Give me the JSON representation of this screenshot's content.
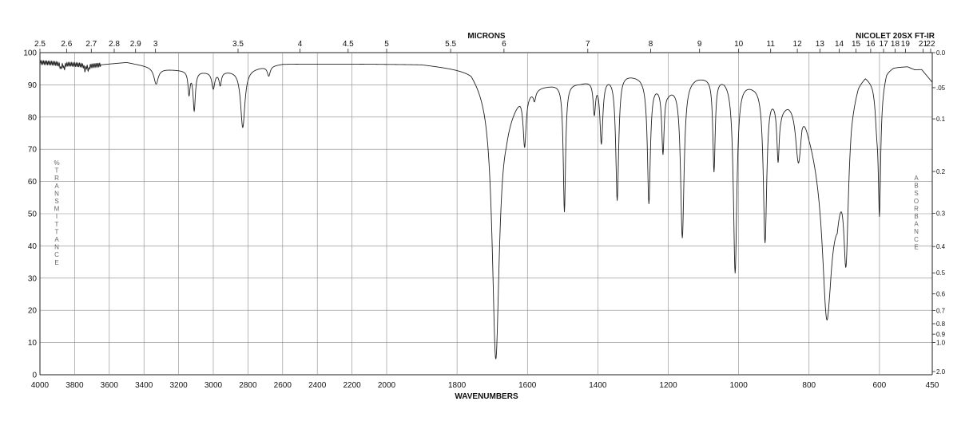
{
  "chart_data": {
    "type": "line",
    "title": "NICOLET 20SX FT-IR",
    "top_axis_title": "MICRONS",
    "xlabel": "WAVENUMBERS",
    "left_axis_label": "%TRANSMITTANCE",
    "right_axis_label": "ABSORBANCE",
    "grid": true,
    "xlim": [
      4000,
      450
    ],
    "ylim": [
      0,
      100
    ],
    "x_ticks": [
      "4000",
      "3800",
      "3600",
      "3400",
      "3200",
      "3000",
      "2800",
      "2600",
      "2400",
      "2200",
      "2000",
      "1800",
      "1600",
      "1400",
      "1200",
      "1000",
      "800",
      "600",
      "450"
    ],
    "y_ticks": [
      "100",
      "90",
      "80",
      "70",
      "60",
      "50",
      "40",
      "30",
      "20",
      "10",
      "0"
    ],
    "micron_ticks": [
      {
        "um": 2.5,
        "label": "2.5"
      },
      {
        "um": 2.6,
        "label": "2.6"
      },
      {
        "um": 2.7,
        "label": "2.7"
      },
      {
        "um": 2.8,
        "label": "2.8"
      },
      {
        "um": 2.9,
        "label": "2.9"
      },
      {
        "um": 3,
        "label": "3"
      },
      {
        "um": 3.5,
        "label": "3.5"
      },
      {
        "um": 4,
        "label": "4"
      },
      {
        "um": 4.5,
        "label": "4.5"
      },
      {
        "um": 5,
        "label": "5"
      },
      {
        "um": 5.5,
        "label": "5.5"
      },
      {
        "um": 6,
        "label": "6"
      },
      {
        "um": 7,
        "label": "7"
      },
      {
        "um": 8,
        "label": "8"
      },
      {
        "um": 9,
        "label": "9"
      },
      {
        "um": 10,
        "label": "10"
      },
      {
        "um": 11,
        "label": "11"
      },
      {
        "um": 12,
        "label": "12"
      },
      {
        "um": 13,
        "label": "13"
      },
      {
        "um": 14,
        "label": "14"
      },
      {
        "um": 15,
        "label": "15"
      },
      {
        "um": 16,
        "label": "16"
      },
      {
        "um": 17,
        "label": "17"
      },
      {
        "um": 18,
        "label": "18"
      },
      {
        "um": 19,
        "label": "19"
      },
      {
        "um": 21,
        "label": "21"
      },
      {
        "um": 22,
        "label": "22"
      }
    ],
    "absorbance_ticks": [
      {
        "a": 0,
        "label": "0.0"
      },
      {
        "a": 0.05,
        "label": ".05"
      },
      {
        "a": 0.1,
        "label": "0.1"
      },
      {
        "a": 0.2,
        "label": "0.2"
      },
      {
        "a": 0.3,
        "label": "0.3"
      },
      {
        "a": 0.4,
        "label": "0.4"
      },
      {
        "a": 0.5,
        "label": "0.5"
      },
      {
        "a": 0.6,
        "label": "0.6"
      },
      {
        "a": 0.7,
        "label": "0.7"
      },
      {
        "a": 0.8,
        "label": "0.8"
      },
      {
        "a": 0.9,
        "label": "0.9"
      },
      {
        "a": 1.0,
        "label": "1.0"
      },
      {
        "a": 2.0,
        "label": "2.0"
      }
    ],
    "series": [
      {
        "baseline": [
          [
            4000,
            97
          ],
          [
            3700,
            96
          ],
          [
            3500,
            97
          ],
          [
            3300,
            95
          ],
          [
            3000,
            94
          ],
          [
            2800,
            95
          ],
          [
            2600,
            96.5
          ],
          [
            2300,
            96.5
          ],
          [
            2100,
            96.5
          ],
          [
            1900,
            96.5
          ],
          [
            1760,
            95
          ],
          [
            1720,
            90
          ],
          [
            1660,
            82
          ],
          [
            1620,
            88
          ],
          [
            1560,
            90
          ],
          [
            1500,
            91
          ],
          [
            1450,
            91
          ],
          [
            1380,
            93
          ],
          [
            1330,
            94
          ],
          [
            1280,
            93
          ],
          [
            1240,
            91
          ],
          [
            1200,
            89
          ],
          [
            1160,
            92
          ],
          [
            1120,
            93
          ],
          [
            1080,
            93
          ],
          [
            1040,
            93
          ],
          [
            1000,
            92
          ],
          [
            960,
            91
          ],
          [
            920,
            91
          ],
          [
            880,
            84
          ],
          [
            860,
            86
          ],
          [
            820,
            88
          ],
          [
            800,
            78
          ],
          [
            780,
            70
          ],
          [
            760,
            62
          ],
          [
            740,
            55
          ],
          [
            720,
            55
          ],
          [
            700,
            73
          ],
          [
            680,
            86
          ],
          [
            660,
            92
          ],
          [
            640,
            94
          ],
          [
            620,
            92
          ],
          [
            600,
            88
          ],
          [
            580,
            95
          ],
          [
            560,
            96
          ],
          [
            540,
            96
          ],
          [
            520,
            96
          ],
          [
            500,
            95
          ],
          [
            480,
            95
          ],
          [
            450,
            91
          ]
        ],
        "peaks": [
          {
            "wn": 3880,
            "depth": 1.5,
            "width": 5
          },
          {
            "wn": 3860,
            "depth": 1.5,
            "width": 4
          },
          {
            "wn": 3740,
            "depth": 1.5,
            "width": 5
          },
          {
            "wn": 3720,
            "depth": 1.5,
            "width": 4
          },
          {
            "wn": 3330,
            "depth": 5,
            "width": 15
          },
          {
            "wn": 3140,
            "depth": 7,
            "width": 7
          },
          {
            "wn": 3110,
            "depth": 12,
            "width": 8
          },
          {
            "wn": 3000,
            "depth": 5,
            "width": 10
          },
          {
            "wn": 2960,
            "depth": 4,
            "width": 8
          },
          {
            "wn": 2830,
            "depth": 18,
            "width": 15
          },
          {
            "wn": 2680,
            "depth": 3,
            "width": 10
          },
          {
            "wn": 1690,
            "depth": 81,
            "width": 12
          },
          {
            "wn": 1608,
            "depth": 16,
            "width": 5
          },
          {
            "wn": 1580,
            "depth": 3,
            "width": 4
          },
          {
            "wn": 1495,
            "depth": 40,
            "width": 4
          },
          {
            "wn": 1410,
            "depth": 10,
            "width": 4
          },
          {
            "wn": 1390,
            "depth": 20,
            "width": 5
          },
          {
            "wn": 1345,
            "depth": 39,
            "width": 5
          },
          {
            "wn": 1255,
            "depth": 38,
            "width": 5
          },
          {
            "wn": 1215,
            "depth": 20,
            "width": 4
          },
          {
            "wn": 1160,
            "depth": 49,
            "width": 6
          },
          {
            "wn": 1070,
            "depth": 29,
            "width": 4
          },
          {
            "wn": 1010,
            "depth": 60,
            "width": 6
          },
          {
            "wn": 925,
            "depth": 49,
            "width": 6
          },
          {
            "wn": 888,
            "depth": 17,
            "width": 4
          },
          {
            "wn": 830,
            "depth": 20,
            "width": 10
          },
          {
            "wn": 750,
            "depth": 40,
            "width": 14
          },
          {
            "wn": 695,
            "depth": 40,
            "width": 8
          },
          {
            "wn": 608,
            "depth": 8,
            "width": 5
          },
          {
            "wn": 600,
            "depth": 36,
            "width": 4
          }
        ]
      }
    ]
  }
}
